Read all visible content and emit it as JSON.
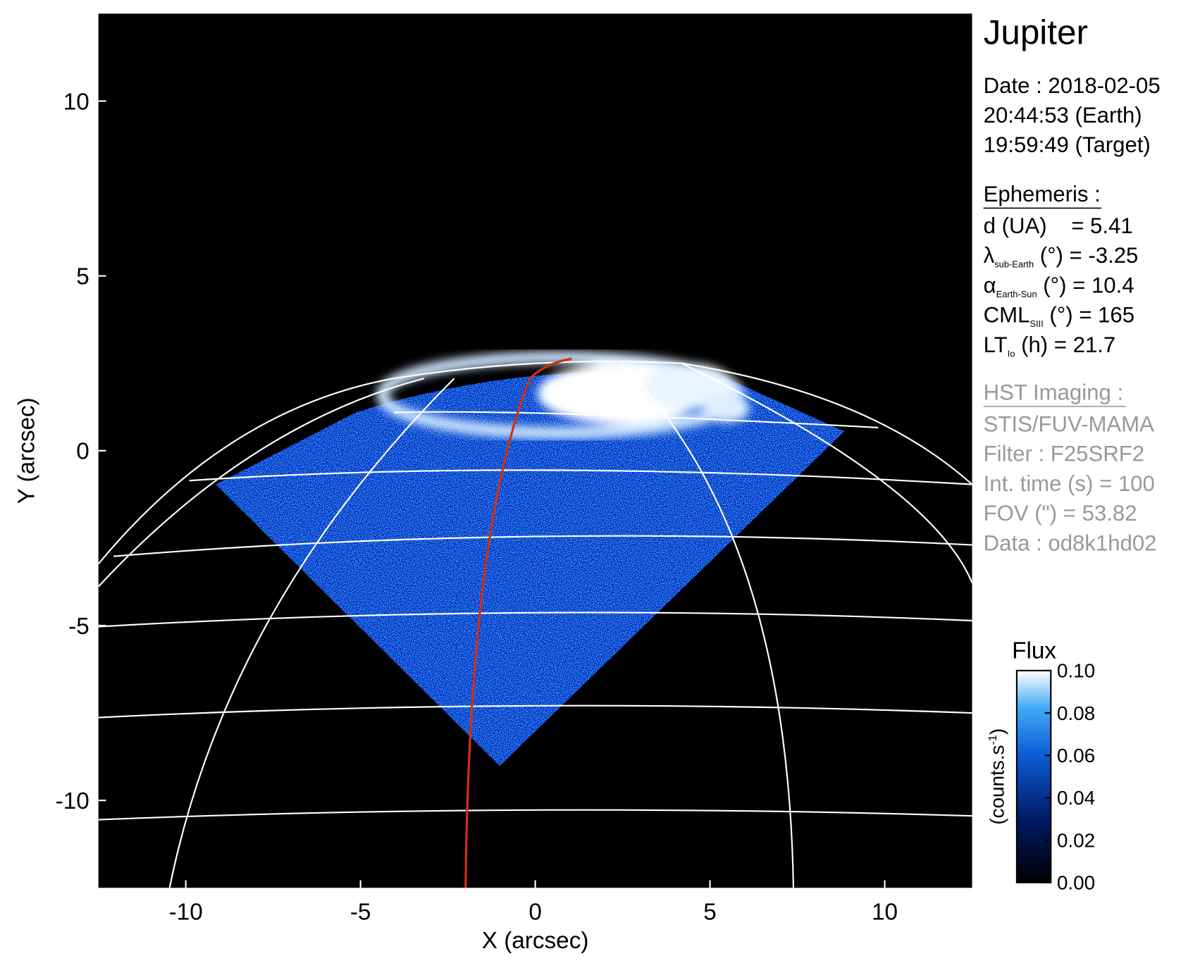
{
  "chart_data": {
    "type": "image",
    "xlabel": "X (arcsec)",
    "ylabel": "Y (arcsec)",
    "xlim": [
      -12.5,
      12.5
    ],
    "ylim": [
      -12.5,
      12.5
    ],
    "xticks": [
      -10,
      -5,
      0,
      5,
      10
    ],
    "yticks": [
      -10,
      -5,
      0,
      5,
      10
    ],
    "colorbar": {
      "title": "Flux",
      "label": "(counts.s",
      "label_sup": "-1",
      "label_end": ")",
      "lim": [
        0,
        0.1
      ],
      "ticks": [
        {
          "value": 0,
          "label": "0.00"
        },
        {
          "value": 0.02,
          "label": "0.02"
        },
        {
          "value": 0.04,
          "label": "0.04"
        },
        {
          "value": 0.06,
          "label": "0.06"
        },
        {
          "value": 0.08,
          "label": "0.08"
        },
        {
          "value": 0.1,
          "label": "0.10"
        }
      ]
    }
  },
  "info": {
    "title": "Jupiter",
    "date": [
      "Date : 2018-02-05",
      "20:44:53 (Earth)",
      "19:59:49 (Target)"
    ],
    "ephemeris_title": "Ephemeris :",
    "ephemeris": [
      {
        "text": "d (UA)    = 5.41"
      },
      {
        "symbol": "λ",
        "sub": "sub-Earth",
        "text": " (°) = -3.25"
      },
      {
        "symbol": "α",
        "sub": "Earth-Sun",
        "text": " (°) = 10.4"
      },
      {
        "symbol": "CML",
        "sub": "SIII",
        "text": " (°) = 165"
      },
      {
        "symbol": "LT",
        "sub": "Io",
        "text": " (h) = 21.7"
      }
    ],
    "hst_title": "HST Imaging :",
    "hst": [
      "STIS/FUV-MAMA",
      "Filter : F25SRF2",
      "Int. time (s) = 100",
      "FOV (\") = 53.82",
      "Data : od8k1hd02"
    ]
  }
}
